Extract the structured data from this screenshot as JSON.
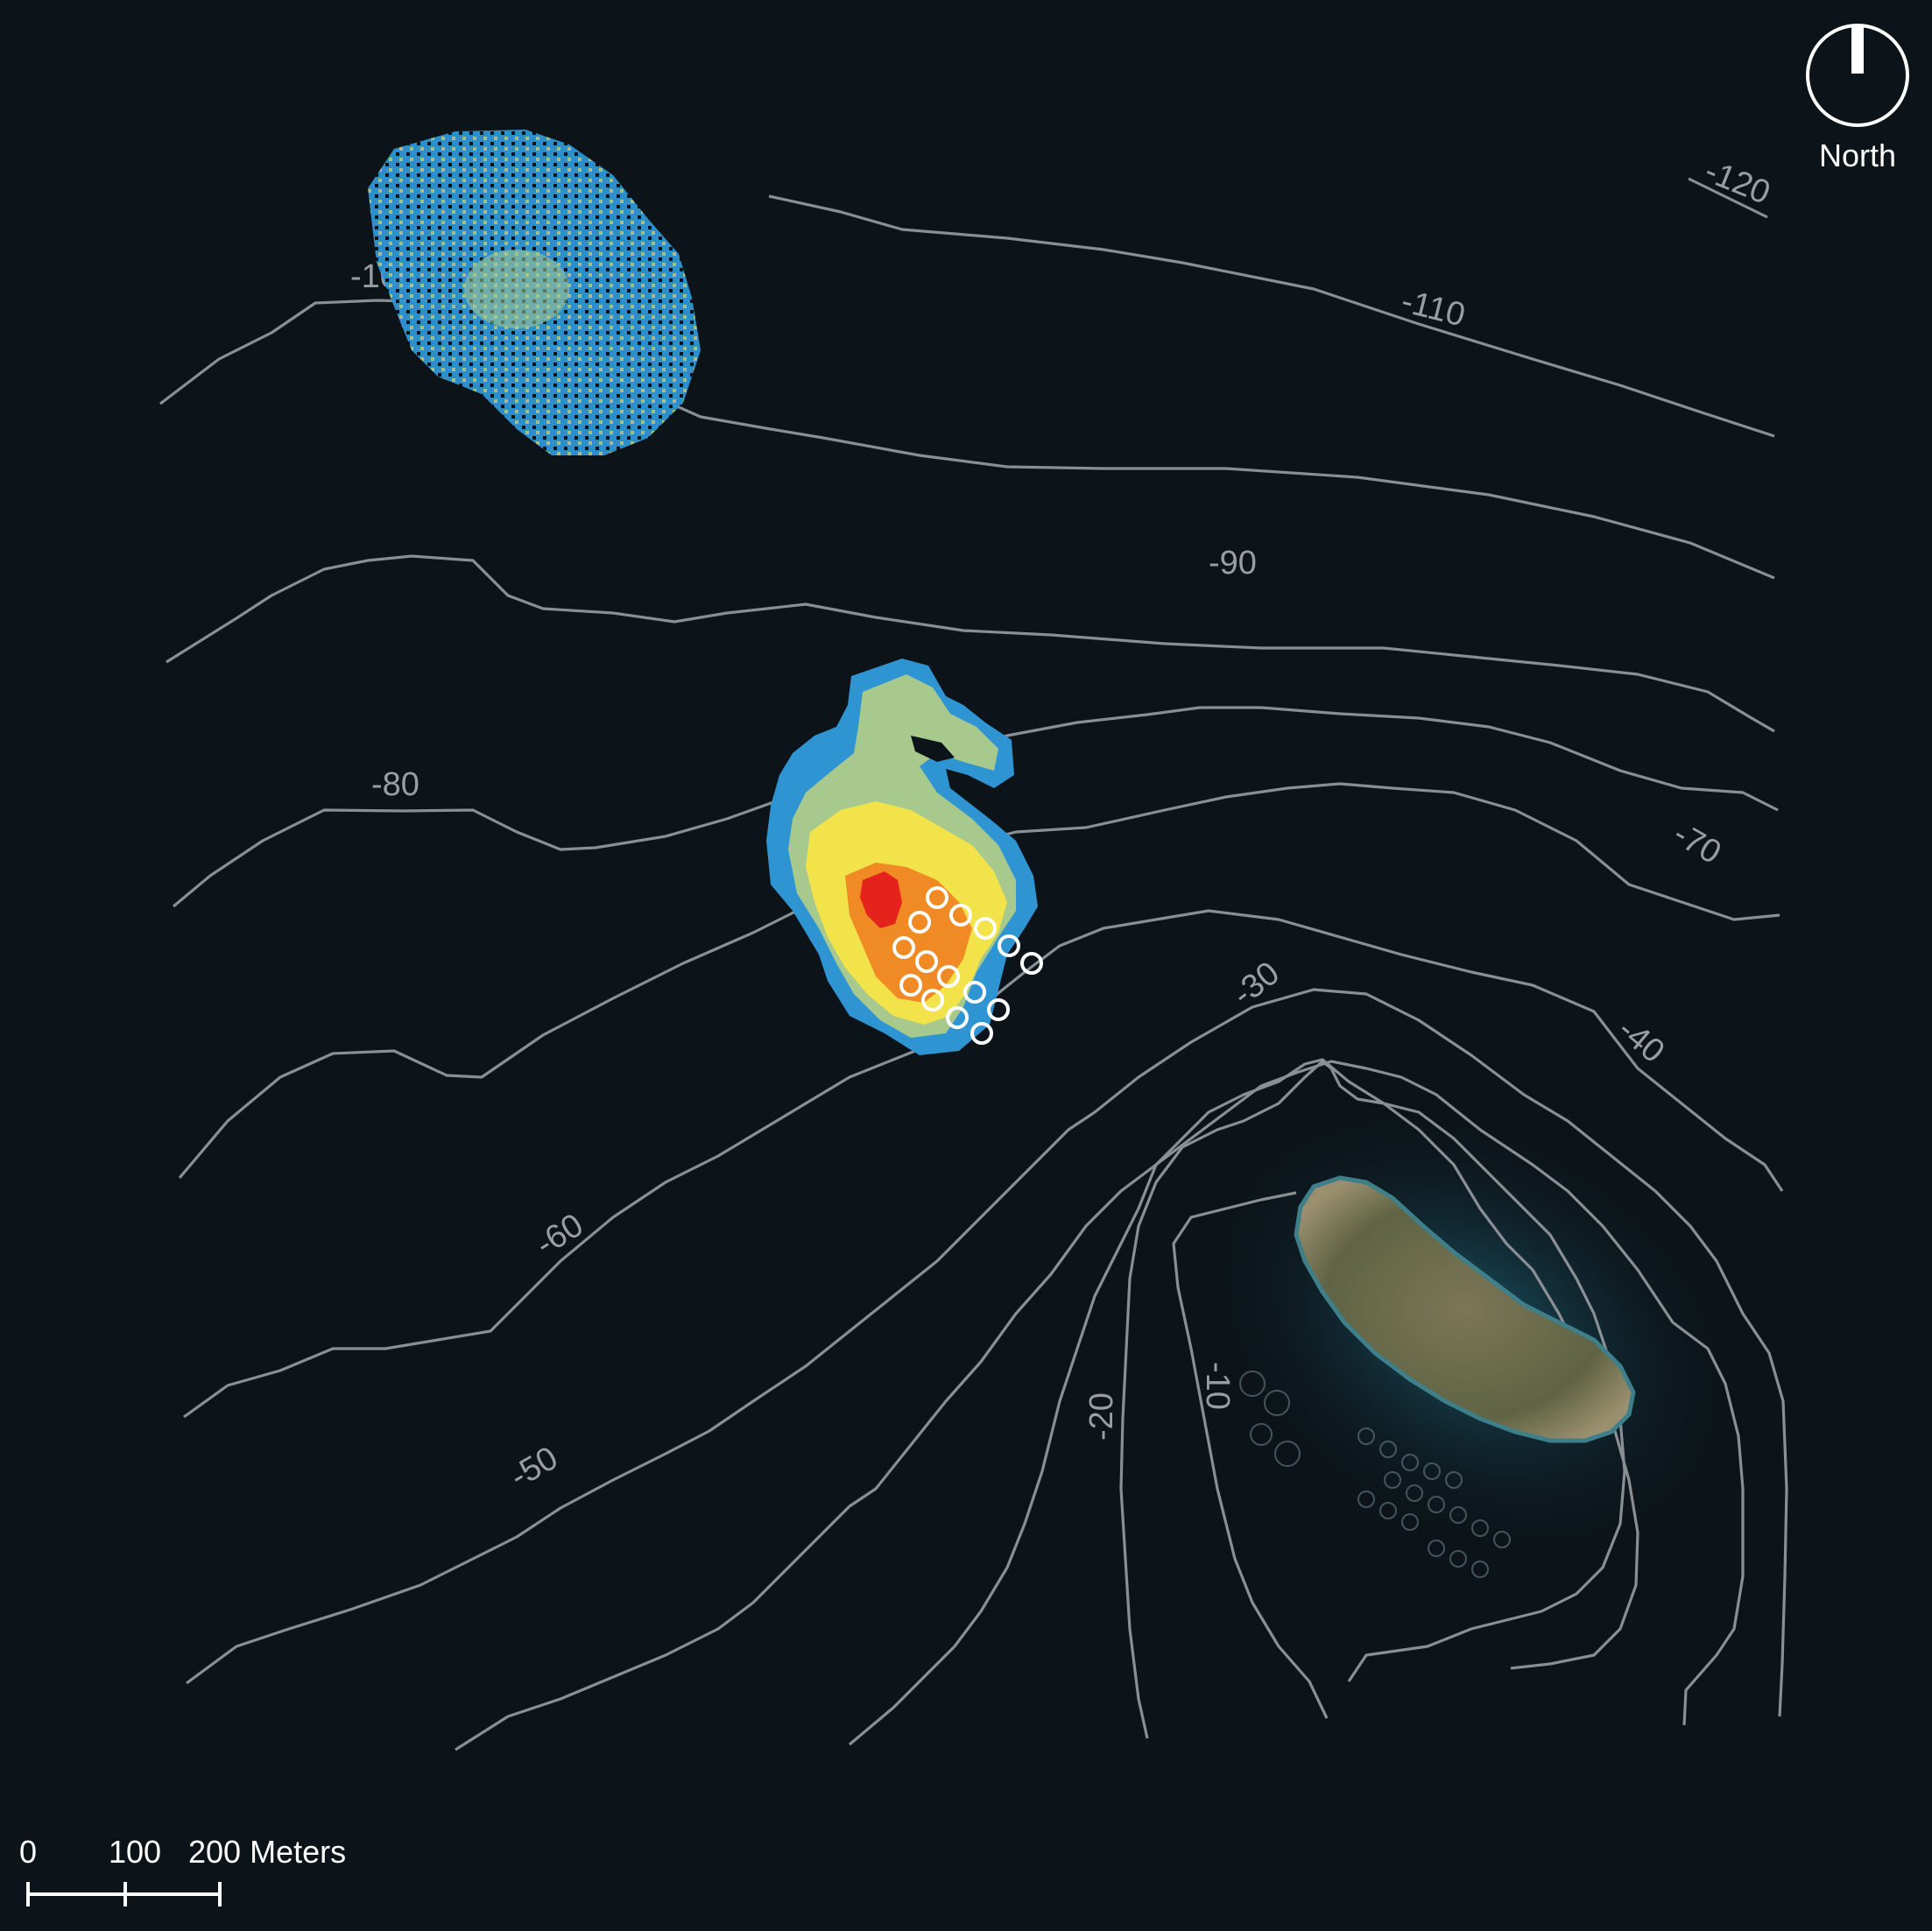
{
  "north_arrow": {
    "label": "North"
  },
  "scale_bar": {
    "ticks": [
      "0",
      "100",
      "200 Meters"
    ]
  },
  "contours": [
    {
      "id": "c-120",
      "label": "-120"
    },
    {
      "id": "c-110",
      "label": "-110"
    },
    {
      "id": "c-100",
      "label": "-100"
    },
    {
      "id": "c-90",
      "label": "-90"
    },
    {
      "id": "c-80",
      "label": "-80"
    },
    {
      "id": "c-70",
      "label": "-70"
    },
    {
      "id": "c-60",
      "label": "-60"
    },
    {
      "id": "c-50",
      "label": "-50"
    },
    {
      "id": "c-40",
      "label": "-40"
    },
    {
      "id": "c-30",
      "label": "-30"
    },
    {
      "id": "c-20",
      "label": "-20"
    },
    {
      "id": "c-10",
      "label": "-10"
    }
  ],
  "colors": {
    "sea": "#0c1419",
    "contour": "#8a8f93",
    "density_high": "#e4231c",
    "density_mid_high": "#f08a24",
    "density_mid": "#f3e34a",
    "density_low": "#a8c98e",
    "density_lowest": "#2f95d2",
    "island": "#6b6a4a",
    "cage": "#ffffff"
  },
  "cages": {
    "count": 14
  }
}
